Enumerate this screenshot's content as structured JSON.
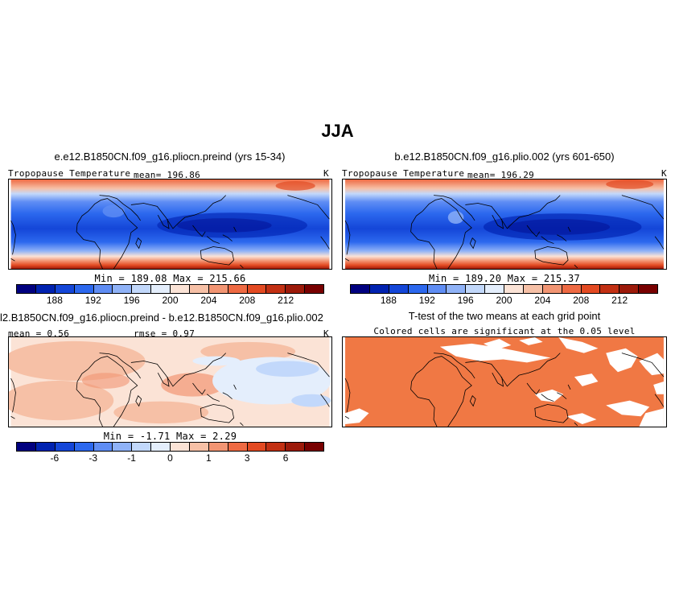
{
  "main_title": "JJA",
  "colors": {
    "levels": [
      "#00007f",
      "#0022b0",
      "#1446d8",
      "#2c68ee",
      "#5f8df4",
      "#8fb2f7",
      "#c2d8fb",
      "#e4eefc",
      "#fbe3d6",
      "#f6c0a6",
      "#f29573",
      "#ee6a43",
      "#e34a22",
      "#c23013",
      "#9c1a0a",
      "#780000"
    ],
    "land_outline": "#000000",
    "significant": "#f07844",
    "not_significant": "#ffffff"
  },
  "chart_data": [
    {
      "type": "heatmap",
      "title": "e.e12.B1850CN.f09_g16.pliocn.preind (yrs 15-34)",
      "variable": "Tropopause Temperature",
      "mean_label": "mean= 196.86",
      "units": "K",
      "stats_label": "Min = 189.08 Max = 215.66",
      "min": 189.08,
      "max": 215.66,
      "colorbar_ticks": [
        "188",
        "192",
        "196",
        "200",
        "204",
        "208",
        "212"
      ]
    },
    {
      "type": "heatmap",
      "title": "b.e12.B1850CN.f09_g16.plio.002 (yrs 601-650)",
      "variable": "Tropopause Temperature",
      "mean_label": "mean= 196.29",
      "units": "K",
      "stats_label": "Min = 189.20 Max = 215.37",
      "min": 189.2,
      "max": 215.37,
      "colorbar_ticks": [
        "188",
        "192",
        "196",
        "200",
        "204",
        "208",
        "212"
      ]
    },
    {
      "type": "heatmap",
      "title": "l2.B1850CN.f09_g16.pliocn.preind - b.e12.B1850CN.f09_g16.plio.002",
      "mean_label": "mean =  0.56",
      "rmse_label": "rmse =  0.97",
      "units": "K",
      "stats_label": "Min = -1.71 Max = 2.29",
      "min": -1.71,
      "max": 2.29,
      "colorbar_ticks": [
        "-6",
        "-3",
        "-1",
        "0",
        "1",
        "3",
        "6"
      ]
    },
    {
      "type": "heatmap",
      "title": "T-test of the two means at each grid point",
      "subtitle": "Colored cells are significant at the 0.05 level"
    }
  ]
}
